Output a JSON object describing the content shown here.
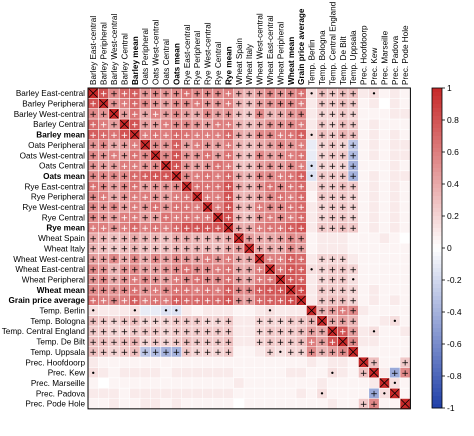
{
  "chart_data": {
    "type": "heatmap",
    "title": "",
    "row_labels": [
      "Barley East-central",
      "Barley Peripheral",
      "Barley West-central",
      "Barley Central",
      "Barley mean",
      "Oats Peripheral",
      "Oats West-central",
      "Oats Central",
      "Oats mean",
      "Rye East-central",
      "Rye Peripheral",
      "Rye West-central",
      "Rye Central",
      "Rye mean",
      "Wheat Spain",
      "Wheat Italy",
      "Wheat West-central",
      "Wheat East-central",
      "Wheat Peripheral",
      "Wheat mean",
      "Grain price average",
      "Temp. Berlin",
      "Temp. Bologna",
      "Temp. Central England",
      "Temp. De Bilt",
      "Temp. Uppsala",
      "Prec. Hoofdoorp",
      "Prec. Kew",
      "Prec. Marseille",
      "Prec. Padova",
      "Prec. Pode Hole"
    ],
    "bold_labels": [
      "Barley mean",
      "Oats mean",
      "Rye mean",
      "Wheat mean",
      "Grain price average"
    ],
    "significance_symbols": {
      "p05": "+",
      "p10": "•",
      "diagonal": "×"
    },
    "colorbar": {
      "ticks": [
        "1",
        "0.8",
        "0.6",
        "0.4",
        "0.2",
        "0",
        "-0.2",
        "-0.4",
        "-0.6",
        "-0.8",
        "-1"
      ],
      "min": -1,
      "max": 1,
      "colors": {
        "positive": "#c62828",
        "zero": "#ffffff",
        "negative": "#1f3fa8"
      }
    },
    "values": [
      [
        1.0,
        0.8,
        0.55,
        0.7,
        0.75,
        0.5,
        0.55,
        0.5,
        0.55,
        0.65,
        0.55,
        0.55,
        0.55,
        0.6,
        0.4,
        0.35,
        0.45,
        0.55,
        0.5,
        0.55,
        0.65,
        0.15,
        0.3,
        0.25,
        0.3,
        0.3,
        0.1,
        0.15,
        0.05,
        0.1,
        0.05
      ],
      [
        0.8,
        1.0,
        0.5,
        0.6,
        0.7,
        0.55,
        0.5,
        0.45,
        0.55,
        0.55,
        0.6,
        0.5,
        0.5,
        0.6,
        0.35,
        0.3,
        0.45,
        0.5,
        0.55,
        0.55,
        0.6,
        0.1,
        0.25,
        0.25,
        0.3,
        0.25,
        0.05,
        0.1,
        0.0,
        0.1,
        0.05
      ],
      [
        0.55,
        0.5,
        1.0,
        0.45,
        0.65,
        0.4,
        0.6,
        0.45,
        0.55,
        0.45,
        0.4,
        0.55,
        0.45,
        0.5,
        0.3,
        0.25,
        0.55,
        0.35,
        0.4,
        0.5,
        0.55,
        0.1,
        0.2,
        0.2,
        0.25,
        0.2,
        0.05,
        0.05,
        0.05,
        0.1,
        0.1
      ],
      [
        0.7,
        0.6,
        0.45,
        1.0,
        0.8,
        0.45,
        0.45,
        0.6,
        0.55,
        0.55,
        0.5,
        0.45,
        0.6,
        0.6,
        0.35,
        0.3,
        0.4,
        0.5,
        0.5,
        0.55,
        0.6,
        0.1,
        0.25,
        0.2,
        0.3,
        0.25,
        0.05,
        0.1,
        0.05,
        0.05,
        0.05
      ],
      [
        0.75,
        0.7,
        0.65,
        0.8,
        1.0,
        0.6,
        0.65,
        0.6,
        0.7,
        0.65,
        0.6,
        0.6,
        0.6,
        0.7,
        0.4,
        0.35,
        0.55,
        0.55,
        0.6,
        0.65,
        0.75,
        0.15,
        0.3,
        0.25,
        0.35,
        0.3,
        0.05,
        0.1,
        0.05,
        0.1,
        0.05
      ],
      [
        0.5,
        0.55,
        0.4,
        0.45,
        0.6,
        1.0,
        0.55,
        0.5,
        0.75,
        0.45,
        0.6,
        0.5,
        0.45,
        0.6,
        0.35,
        0.3,
        0.4,
        0.45,
        0.55,
        0.5,
        0.6,
        -0.1,
        0.2,
        0.25,
        0.2,
        -0.3,
        0.05,
        0.1,
        0.05,
        0.1,
        0.1
      ],
      [
        0.55,
        0.5,
        0.6,
        0.45,
        0.65,
        0.55,
        1.0,
        0.55,
        0.8,
        0.5,
        0.5,
        0.65,
        0.45,
        0.65,
        0.35,
        0.3,
        0.55,
        0.45,
        0.5,
        0.6,
        0.65,
        -0.1,
        0.2,
        0.25,
        0.25,
        -0.35,
        0.05,
        0.1,
        0.05,
        0.1,
        0.1
      ],
      [
        0.5,
        0.45,
        0.45,
        0.6,
        0.6,
        0.5,
        0.55,
        1.0,
        0.8,
        0.5,
        0.45,
        0.5,
        0.65,
        0.6,
        0.3,
        0.3,
        0.45,
        0.5,
        0.45,
        0.55,
        0.6,
        -0.15,
        0.2,
        0.2,
        0.2,
        -0.4,
        0.05,
        0.05,
        0.05,
        0.1,
        0.05
      ],
      [
        0.55,
        0.55,
        0.55,
        0.55,
        0.7,
        0.75,
        0.8,
        0.8,
        1.0,
        0.55,
        0.6,
        0.65,
        0.6,
        0.7,
        0.4,
        0.35,
        0.55,
        0.55,
        0.6,
        0.65,
        0.75,
        -0.15,
        0.25,
        0.25,
        0.25,
        -0.4,
        0.05,
        0.1,
        0.05,
        0.1,
        0.1
      ],
      [
        0.65,
        0.55,
        0.45,
        0.55,
        0.65,
        0.45,
        0.5,
        0.5,
        0.55,
        1.0,
        0.65,
        0.65,
        0.65,
        0.8,
        0.4,
        0.35,
        0.5,
        0.65,
        0.55,
        0.65,
        0.7,
        0.1,
        0.25,
        0.25,
        0.3,
        0.25,
        0.05,
        0.1,
        0.05,
        0.1,
        0.05
      ],
      [
        0.55,
        0.6,
        0.4,
        0.5,
        0.6,
        0.6,
        0.5,
        0.45,
        0.6,
        0.65,
        1.0,
        0.6,
        0.6,
        0.8,
        0.35,
        0.35,
        0.45,
        0.55,
        0.65,
        0.6,
        0.7,
        0.05,
        0.25,
        0.25,
        0.25,
        0.2,
        0.05,
        0.1,
        0.05,
        0.1,
        0.05
      ],
      [
        0.55,
        0.5,
        0.55,
        0.45,
        0.6,
        0.5,
        0.65,
        0.5,
        0.65,
        0.65,
        0.6,
        1.0,
        0.6,
        0.8,
        0.35,
        0.35,
        0.6,
        0.55,
        0.55,
        0.65,
        0.7,
        0.1,
        0.2,
        0.25,
        0.25,
        0.2,
        0.05,
        0.1,
        0.05,
        0.1,
        0.05
      ],
      [
        0.55,
        0.5,
        0.45,
        0.6,
        0.6,
        0.45,
        0.45,
        0.65,
        0.6,
        0.65,
        0.6,
        0.6,
        1.0,
        0.8,
        0.35,
        0.3,
        0.5,
        0.6,
        0.55,
        0.6,
        0.7,
        0.1,
        0.2,
        0.25,
        0.25,
        0.2,
        0.05,
        0.1,
        0.05,
        0.1,
        0.05
      ],
      [
        0.6,
        0.6,
        0.5,
        0.6,
        0.7,
        0.6,
        0.65,
        0.6,
        0.7,
        0.8,
        0.8,
        0.8,
        0.8,
        1.0,
        0.4,
        0.4,
        0.6,
        0.65,
        0.65,
        0.75,
        0.8,
        0.1,
        0.25,
        0.25,
        0.3,
        0.25,
        0.05,
        0.1,
        0.05,
        0.1,
        0.05
      ],
      [
        0.4,
        0.35,
        0.3,
        0.35,
        0.4,
        0.35,
        0.35,
        0.3,
        0.4,
        0.4,
        0.35,
        0.35,
        0.35,
        0.4,
        1.0,
        0.45,
        0.4,
        0.4,
        0.45,
        0.55,
        0.5,
        0.05,
        0.1,
        0.1,
        0.1,
        0.05,
        0.05,
        0.05,
        0.1,
        0.05,
        0.0
      ],
      [
        0.35,
        0.3,
        0.25,
        0.3,
        0.35,
        0.3,
        0.3,
        0.3,
        0.35,
        0.35,
        0.35,
        0.35,
        0.3,
        0.4,
        0.45,
        1.0,
        0.4,
        0.4,
        0.4,
        0.55,
        0.45,
        0.05,
        0.1,
        0.1,
        0.1,
        0.05,
        0.05,
        0.05,
        0.05,
        0.05,
        0.05
      ],
      [
        0.45,
        0.45,
        0.55,
        0.4,
        0.55,
        0.4,
        0.55,
        0.45,
        0.55,
        0.5,
        0.45,
        0.6,
        0.5,
        0.6,
        0.4,
        0.4,
        1.0,
        0.6,
        0.6,
        0.75,
        0.7,
        0.1,
        0.2,
        0.2,
        0.2,
        0.1,
        0.05,
        0.05,
        0.05,
        0.05,
        0.05
      ],
      [
        0.55,
        0.5,
        0.35,
        0.5,
        0.55,
        0.45,
        0.45,
        0.5,
        0.55,
        0.65,
        0.55,
        0.55,
        0.6,
        0.65,
        0.4,
        0.4,
        0.6,
        1.0,
        0.65,
        0.8,
        0.75,
        0.15,
        0.2,
        0.25,
        0.25,
        0.2,
        0.05,
        0.05,
        0.05,
        0.05,
        0.05
      ],
      [
        0.5,
        0.55,
        0.4,
        0.5,
        0.6,
        0.55,
        0.5,
        0.45,
        0.6,
        0.55,
        0.65,
        0.55,
        0.55,
        0.65,
        0.45,
        0.4,
        0.6,
        0.65,
        1.0,
        0.8,
        0.75,
        0.1,
        0.2,
        0.25,
        0.25,
        0.15,
        0.05,
        0.05,
        0.05,
        0.05,
        0.05
      ],
      [
        0.55,
        0.55,
        0.5,
        0.55,
        0.65,
        0.5,
        0.6,
        0.55,
        0.65,
        0.65,
        0.6,
        0.65,
        0.6,
        0.75,
        0.55,
        0.55,
        0.75,
        0.8,
        0.8,
        1.0,
        0.85,
        0.1,
        0.25,
        0.25,
        0.25,
        0.2,
        0.05,
        0.1,
        0.05,
        0.05,
        0.05
      ],
      [
        0.65,
        0.6,
        0.55,
        0.6,
        0.75,
        0.6,
        0.65,
        0.6,
        0.75,
        0.7,
        0.7,
        0.7,
        0.7,
        0.8,
        0.5,
        0.45,
        0.7,
        0.75,
        0.75,
        0.85,
        1.0,
        0.1,
        0.25,
        0.3,
        0.3,
        0.2,
        0.05,
        0.1,
        0.05,
        0.1,
        0.05
      ],
      [
        0.15,
        0.1,
        0.1,
        0.1,
        0.15,
        -0.1,
        -0.1,
        -0.15,
        -0.15,
        0.1,
        0.05,
        0.1,
        0.1,
        0.1,
        0.05,
        0.05,
        0.1,
        0.15,
        0.1,
        0.1,
        0.1,
        1.0,
        0.35,
        0.45,
        0.6,
        0.55,
        0.1,
        0.05,
        0.05,
        0.05,
        0.05
      ],
      [
        0.3,
        0.25,
        0.2,
        0.25,
        0.3,
        0.2,
        0.2,
        0.2,
        0.25,
        0.25,
        0.25,
        0.2,
        0.2,
        0.25,
        0.1,
        0.1,
        0.2,
        0.2,
        0.2,
        0.25,
        0.25,
        0.35,
        1.0,
        0.4,
        0.45,
        0.35,
        0.05,
        0.05,
        0.1,
        0.15,
        0.05
      ],
      [
        0.25,
        0.25,
        0.2,
        0.2,
        0.25,
        0.25,
        0.25,
        0.2,
        0.25,
        0.25,
        0.25,
        0.25,
        0.25,
        0.25,
        0.1,
        0.1,
        0.2,
        0.25,
        0.25,
        0.25,
        0.3,
        0.45,
        0.4,
        1.0,
        0.8,
        0.45,
        0.1,
        0.15,
        0.05,
        0.05,
        0.1
      ],
      [
        0.3,
        0.3,
        0.25,
        0.3,
        0.35,
        0.2,
        0.25,
        0.2,
        0.25,
        0.3,
        0.25,
        0.25,
        0.25,
        0.3,
        0.1,
        0.1,
        0.2,
        0.25,
        0.25,
        0.25,
        0.3,
        0.6,
        0.45,
        0.8,
        1.0,
        0.55,
        0.1,
        0.1,
        0.05,
        0.05,
        0.05
      ],
      [
        0.3,
        0.25,
        0.2,
        0.25,
        0.3,
        -0.3,
        -0.35,
        -0.4,
        -0.4,
        0.25,
        0.2,
        0.2,
        0.2,
        0.25,
        0.05,
        0.05,
        0.1,
        0.2,
        0.15,
        0.2,
        0.2,
        0.55,
        0.35,
        0.45,
        0.55,
        1.0,
        0.05,
        0.05,
        0.05,
        0.05,
        0.05
      ],
      [
        0.1,
        0.05,
        0.05,
        0.05,
        0.05,
        0.05,
        0.05,
        0.05,
        0.05,
        0.05,
        0.05,
        0.05,
        0.05,
        0.05,
        0.05,
        0.05,
        0.05,
        0.05,
        0.05,
        0.05,
        0.05,
        0.1,
        0.05,
        0.1,
        0.1,
        0.05,
        1.0,
        0.3,
        0.05,
        0.05,
        0.25
      ],
      [
        0.15,
        0.1,
        0.05,
        0.1,
        0.1,
        0.1,
        0.1,
        0.05,
        0.1,
        0.1,
        0.1,
        0.1,
        0.1,
        0.1,
        0.05,
        0.05,
        0.05,
        0.05,
        0.05,
        0.1,
        0.1,
        0.05,
        0.05,
        0.15,
        0.1,
        0.05,
        0.3,
        1.0,
        0.1,
        -0.45,
        0.55
      ],
      [
        0.05,
        0.0,
        0.05,
        0.05,
        0.05,
        0.05,
        0.05,
        0.05,
        0.05,
        0.05,
        0.05,
        0.05,
        0.05,
        0.05,
        0.1,
        0.05,
        0.05,
        0.05,
        0.05,
        0.05,
        0.05,
        0.05,
        0.1,
        0.05,
        0.05,
        0.05,
        0.05,
        0.1,
        1.0,
        0.15,
        0.05
      ],
      [
        0.1,
        0.1,
        0.1,
        0.05,
        0.1,
        0.1,
        0.1,
        0.1,
        0.1,
        0.1,
        0.1,
        0.1,
        0.1,
        0.1,
        0.05,
        0.05,
        0.05,
        0.05,
        0.05,
        0.05,
        0.1,
        0.05,
        0.15,
        0.05,
        0.05,
        0.05,
        0.05,
        -0.45,
        0.15,
        1.0,
        0.05
      ],
      [
        0.05,
        0.05,
        0.1,
        0.05,
        0.05,
        0.1,
        0.1,
        0.05,
        0.1,
        0.05,
        0.05,
        0.05,
        0.05,
        0.05,
        0.0,
        0.05,
        0.05,
        0.05,
        0.05,
        0.05,
        0.05,
        0.05,
        0.05,
        0.1,
        0.05,
        0.05,
        0.25,
        0.55,
        0.05,
        0.05,
        1.0
      ]
    ]
  }
}
